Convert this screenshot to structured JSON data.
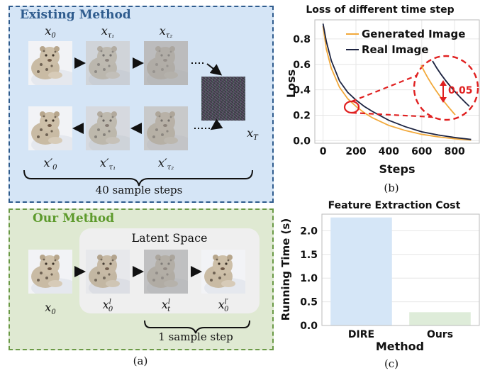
{
  "panel_a": {
    "existing_title": "Existing Method",
    "ours_title": "Our Method",
    "latent_label": "Latent Space",
    "existing_steps_label": "40 sample steps",
    "ours_steps_label": "1 sample step",
    "caption": "(a)",
    "colors": {
      "existing_bg": "#d5e5f6",
      "existing_border": "#2f5c8e",
      "existing_title": "#2f5c8e",
      "ours_bg": "#dfe9d2",
      "ours_border": "#6b9a46",
      "ours_title": "#5d9a2c"
    },
    "math": {
      "x0": "x",
      "x0_sub": "0",
      "xtau1": "x",
      "xtau1_sub": "τ₁",
      "xtau2": "x",
      "xtau2_sub": "τ₂",
      "xT": "x",
      "xT_sub": "T",
      "x0p": "x′",
      "x0p_sub": "0",
      "xtau1p": "x′",
      "xtau1p_sub": "τ₁",
      "xtau2p": "x′",
      "xtau2p_sub": "τ₂",
      "ours_x0": "x",
      "ours_x0_sub": "0",
      "x0l": "x",
      "x0l_sub": "0",
      "x0l_sup": "l",
      "xtl": "x",
      "xtl_sub": "t",
      "xtl_sup": "l",
      "x0lp": "x",
      "x0lp_sub": "0",
      "x0lp_sup": "l′"
    }
  },
  "chart_data": [
    {
      "type": "line",
      "title": "Loss of different time step",
      "xlabel": "Steps",
      "ylabel": "Loss",
      "xlim": [
        -50,
        950
      ],
      "ylim": [
        -0.02,
        0.95
      ],
      "xticks": [
        "0",
        "200",
        "400",
        "600",
        "800"
      ],
      "yticks": [
        "0.0",
        "0.2",
        "0.4",
        "0.6",
        "0.8"
      ],
      "legend": [
        "Generated Image",
        "Real Image"
      ],
      "legend_position": "top-right",
      "annotation": "0.05",
      "caption": "(b)",
      "series": [
        {
          "name": "Generated Image",
          "color": "#f2a93b",
          "x": [
            0,
            20,
            50,
            100,
            150,
            200,
            250,
            300,
            400,
            500,
            600,
            700,
            800,
            900
          ],
          "y": [
            0.9,
            0.72,
            0.57,
            0.42,
            0.33,
            0.27,
            0.22,
            0.18,
            0.12,
            0.08,
            0.05,
            0.03,
            0.015,
            0.005
          ]
        },
        {
          "name": "Real Image",
          "color": "#1c2340",
          "x": [
            0,
            20,
            50,
            100,
            150,
            200,
            250,
            300,
            400,
            500,
            600,
            700,
            800,
            900
          ],
          "y": [
            0.92,
            0.78,
            0.63,
            0.47,
            0.38,
            0.32,
            0.27,
            0.23,
            0.16,
            0.11,
            0.07,
            0.045,
            0.025,
            0.01
          ]
        }
      ]
    },
    {
      "type": "bar",
      "title": "Feature Extraction Cost",
      "xlabel": "Method",
      "ylabel": "Running Time (s)",
      "categories": [
        "DIRE",
        "Ours"
      ],
      "values": [
        2.28,
        0.28
      ],
      "ylim": [
        0,
        2.35
      ],
      "yticks": [
        "0.0",
        "0.5",
        "1.0",
        "1.5",
        "2.0"
      ],
      "colors": [
        "#d5e6f7",
        "#deecd9"
      ],
      "caption": "(c)"
    }
  ]
}
